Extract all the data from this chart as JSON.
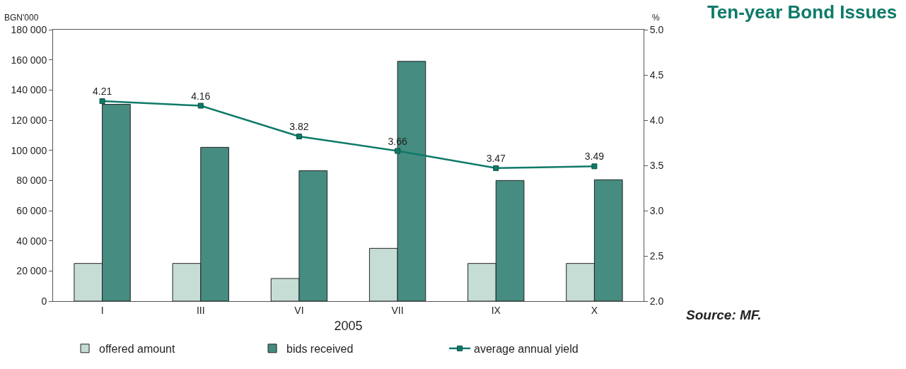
{
  "chart_data": {
    "type": "bar",
    "title": "Ten-year Bond Issues",
    "xlabel": "2005",
    "ylabel": "BGN'000",
    "y2label": "%",
    "categories": [
      "I",
      "III",
      "VI",
      "VII",
      "IX",
      "X"
    ],
    "series": [
      {
        "name": "offered amount",
        "color": "#c6ddd6",
        "values": [
          25000,
          25000,
          15000,
          35000,
          25000,
          25000
        ]
      },
      {
        "name": "bids received",
        "color": "#468c80",
        "values": [
          130500,
          102000,
          86500,
          159000,
          80000,
          80500
        ]
      },
      {
        "name": "average annual yield",
        "type": "line",
        "axis": "y2",
        "color": "#0e7a68",
        "marker": "square",
        "values": [
          4.21,
          4.16,
          3.82,
          3.66,
          3.47,
          3.49
        ],
        "value_labels": [
          "4.21",
          "4.16",
          "3.82",
          "3.66",
          "3.47",
          "3.49"
        ]
      }
    ],
    "ylim": [
      0,
      180000
    ],
    "yticks": [
      0,
      {
        "value": 20000,
        "label": "20 000"
      },
      {
        "value": 40000,
        "label": "40 000"
      },
      {
        "value": 60000,
        "label": "60 000"
      },
      {
        "value": 80000,
        "label": "80 000"
      },
      {
        "value": 100000,
        "label": "100 000"
      },
      {
        "value": 120000,
        "label": "120 000"
      },
      {
        "value": 140000,
        "label": "140 000"
      },
      {
        "value": 160000,
        "label": "160 000"
      },
      {
        "value": 180000,
        "label": "180 000"
      }
    ],
    "y2lim": [
      2.0,
      5.0
    ],
    "y2ticks": [
      {
        "value": 2,
        "label": "2.0"
      },
      2.5,
      {
        "value": 3,
        "label": "3.0"
      },
      3.5,
      {
        "value": 4,
        "label": "4.0"
      },
      4.5,
      {
        "value": 5,
        "label": "5.0"
      }
    ],
    "legend": "bottom",
    "annotations": [
      "Source: MF."
    ]
  }
}
